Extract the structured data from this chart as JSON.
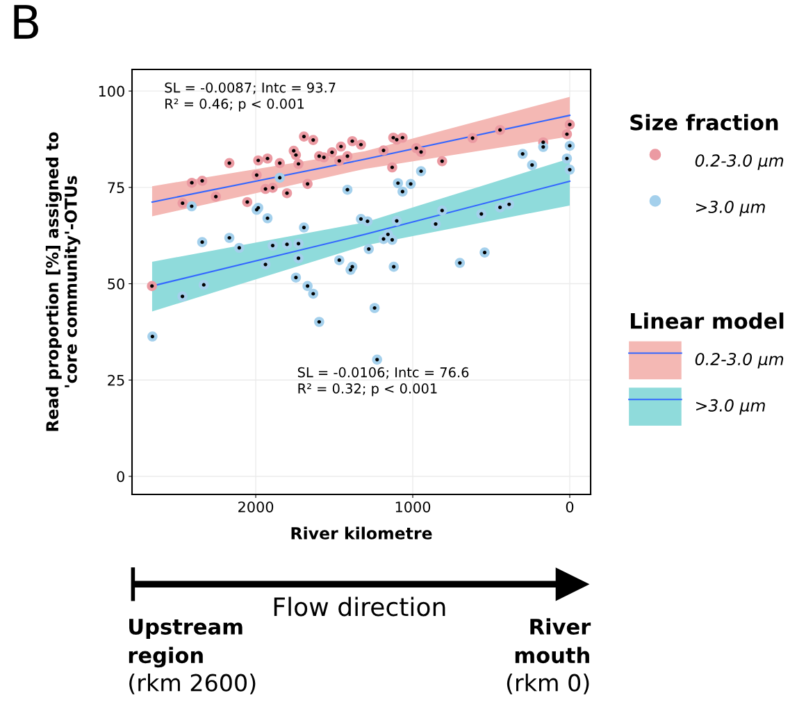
{
  "chart_data": {
    "type": "scatter",
    "xlabel": "River kilometre",
    "ylabel": "Read proportion [%] assigned to\n'core community'-OTUs",
    "legend_title": "Size fraction",
    "xlim": [
      2788,
      -133
    ],
    "ylim": [
      -4.7,
      105.6
    ],
    "xticks": [
      2000,
      1000,
      0
    ],
    "yticks": [
      0,
      25,
      50,
      75,
      100
    ],
    "grid": true,
    "legend": "right",
    "marker": "circle",
    "annotations": [
      "SL = -0.0087; Intc = 93.7\nR² = 0.46; p < 0.001",
      "SL = -0.0106; Intc = 76.6\nR² = 0.32; p < 0.001",
      "Linear model",
      "B",
      "Flow direction",
      "Upstream\nregion",
      "(rkm 2600)",
      "River\nmouth",
      "(rkm 0)"
    ],
    "series": [
      {
        "type": "line",
        "name": "0.2-3.0 µm",
        "color": "#3366ff",
        "marker": "none",
        "x": [
          2660,
          1305,
          0
        ],
        "values": [
          71.2,
          82.3,
          93.7
        ],
        "lower": [
          67.5,
          79.8,
          88.2
        ],
        "upper": [
          75.3,
          84.4,
          98.5
        ]
      },
      {
        "type": "line",
        "name": ">3.0 µm",
        "color": "#3366ff",
        "marker": "none",
        "x": [
          2660,
          1305,
          0
        ],
        "values": [
          49.4,
          62.8,
          76.6
        ],
        "lower": [
          42.8,
          59.9,
          70.3
        ],
        "upper": [
          55.7,
          65.9,
          82.5
        ]
      },
      {
        "name": "0.2-3.0 µm",
        "color": "#eb9aa2",
        "x": [
          2661,
          2466,
          2407,
          2341,
          2254,
          2168,
          2054,
          1994,
          1984,
          1925,
          1938,
          1892,
          1847,
          1801,
          1758,
          1744,
          1728,
          1693,
          1670,
          1634,
          1596,
          1566,
          1514,
          1468,
          1457,
          1416,
          1385,
          1330,
          1186,
          1131,
          1124,
          1102,
          1065,
          977,
          947,
          813,
          619,
          444,
          169,
          18,
          0
        ],
        "values": [
          49.4,
          70.9,
          76.2,
          76.7,
          72.6,
          81.3,
          71.2,
          78.2,
          82.0,
          82.5,
          74.6,
          74.9,
          81.3,
          73.5,
          84.5,
          83.4,
          81.1,
          88.2,
          75.9,
          87.3,
          83.1,
          82.8,
          84.1,
          81.9,
          85.6,
          83.1,
          87.0,
          86.1,
          84.6,
          80.2,
          87.9,
          87.4,
          87.9,
          85.2,
          84.2,
          81.8,
          87.8,
          89.9,
          86.7,
          88.8,
          91.3
        ]
      },
      {
        "name": ">3.0 µm",
        "color": "#a4d0ec",
        "x": [
          2408,
          2341,
          2331,
          2168,
          2105,
          1994,
          1984,
          1938,
          1925,
          1892,
          1847,
          1801,
          1728,
          1728,
          1744,
          1693,
          1670,
          1634,
          2467,
          2658,
          1596,
          1396,
          1385,
          1468,
          1416,
          1330,
          1288,
          947,
          1094,
          1065,
          1013,
          1102,
          1158,
          1186,
          1131,
          1280,
          1121,
          854,
          813,
          700,
          563,
          542,
          444,
          386,
          300,
          240,
          169,
          18,
          0,
          0,
          1243,
          1227
        ],
        "values": [
          70.1,
          60.8,
          49.7,
          61.9,
          59.3,
          69.2,
          69.7,
          55.0,
          67.0,
          59.9,
          77.5,
          60.2,
          60.4,
          56.6,
          51.6,
          64.6,
          49.4,
          47.4,
          46.7,
          36.3,
          40.1,
          53.6,
          54.4,
          56.1,
          74.4,
          66.8,
          66.2,
          79.2,
          76.1,
          73.9,
          75.9,
          66.3,
          62.8,
          61.6,
          61.4,
          59.0,
          54.4,
          65.5,
          69.0,
          55.4,
          68.1,
          58.1,
          69.8,
          70.6,
          83.7,
          80.8,
          85.5,
          82.5,
          85.8,
          79.6,
          43.7,
          30.3
        ]
      }
    ]
  }
}
